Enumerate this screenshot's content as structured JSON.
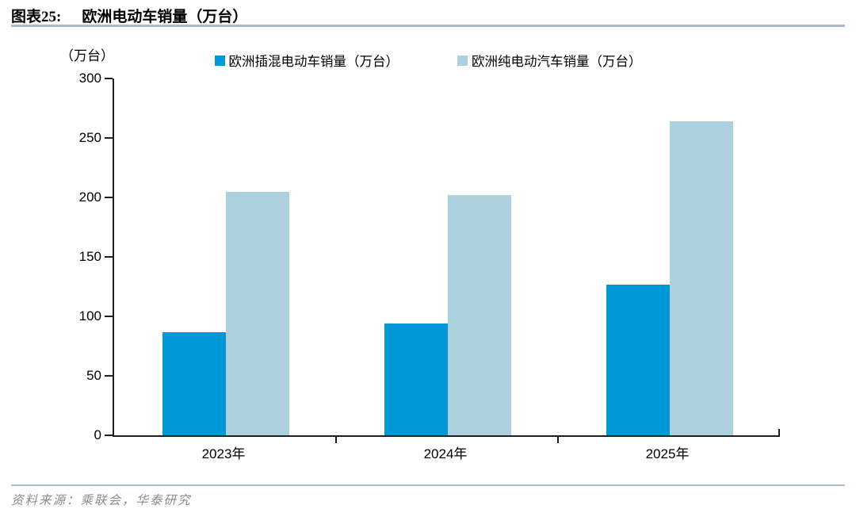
{
  "figure": {
    "label": "图表25:",
    "title": "欧洲电动车销量（万台）",
    "unit_label": "（万台）",
    "source": "资料来源：乘联会，华泰研究"
  },
  "chart_data": {
    "type": "bar",
    "title": "欧洲电动车销量（万台）",
    "categories": [
      "2023年",
      "2024年",
      "2025年"
    ],
    "series": [
      {
        "name": "欧洲插混电动车销量（万台）",
        "color": "#0099D8",
        "values": [
          87,
          94,
          127
        ]
      },
      {
        "name": "欧洲纯电动汽车销量（万台）",
        "color": "#ADD0DF",
        "values": [
          205,
          202,
          264
        ]
      }
    ],
    "xlabel": "",
    "ylabel": "（万台）",
    "ylim": [
      0,
      300
    ],
    "yticks": [
      0,
      50,
      100,
      150,
      200,
      250,
      300
    ],
    "grid": false,
    "legend_position": "top-center"
  },
  "colors": {
    "series_dark_blue": "#0099D8",
    "series_light_blue": "#ADD0DF",
    "rule_blue_gray": "#A4BBD1",
    "axis_black": "#1F1F1F",
    "source_gray": "#8A8A8A"
  }
}
